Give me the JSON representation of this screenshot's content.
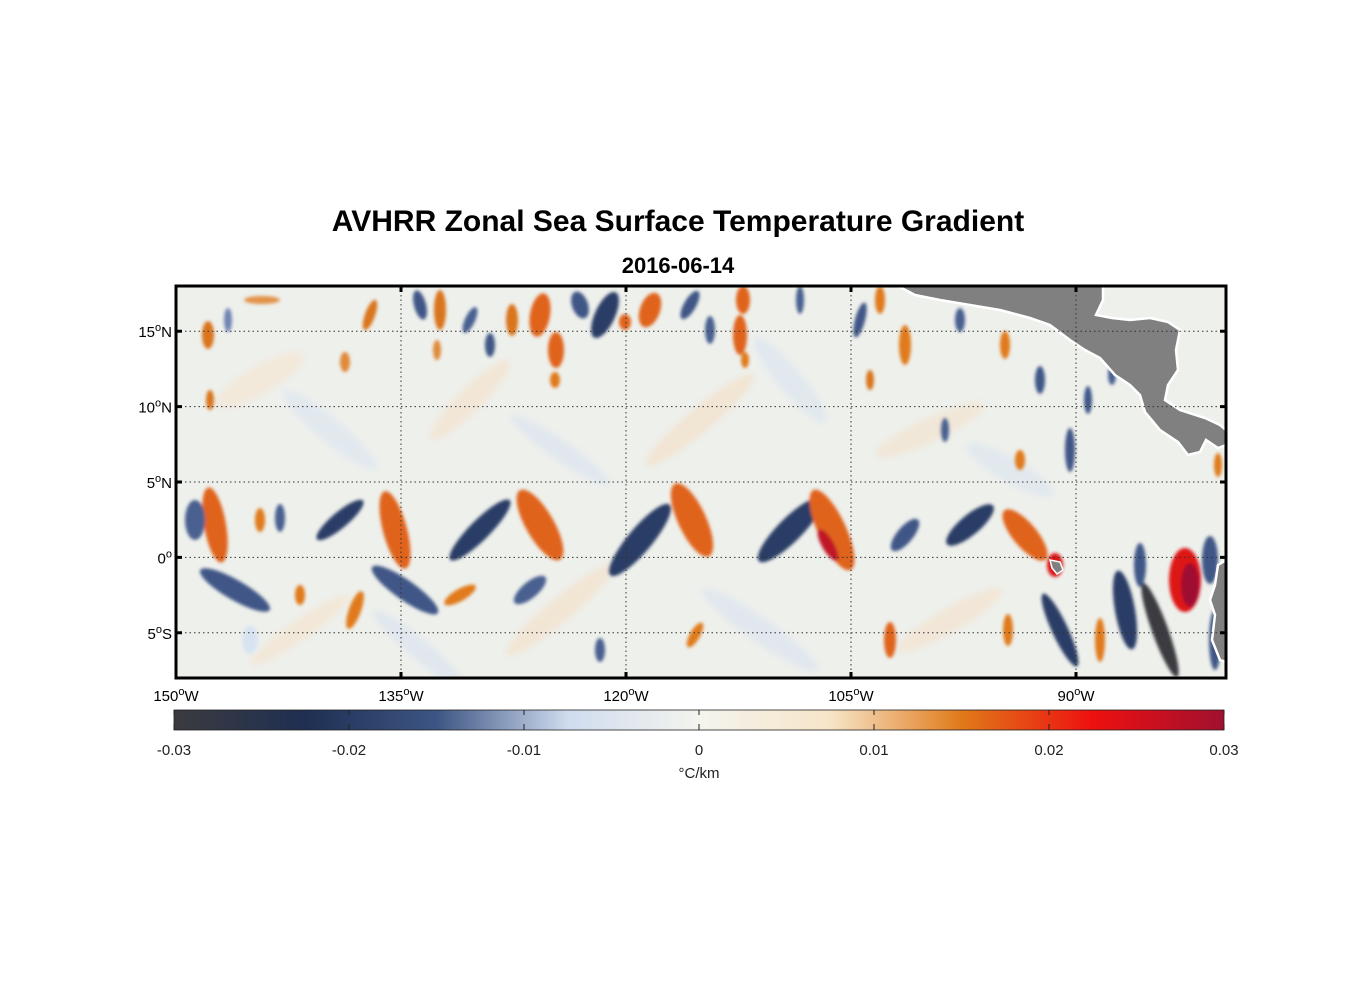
{
  "title": "AVHRR Zonal Sea Surface Temperature Gradient",
  "subtitle": "2016-06-14",
  "map": {
    "lon_range": [
      -150,
      -80
    ],
    "lat_range": [
      -8,
      18
    ],
    "lat_ticks": [
      {
        "value": 15,
        "deg": "15",
        "hem": "N"
      },
      {
        "value": 10,
        "deg": "10",
        "hem": "N"
      },
      {
        "value": 5,
        "deg": "5",
        "hem": "N"
      },
      {
        "value": 0,
        "deg": "0",
        "hem": ""
      },
      {
        "value": -5,
        "deg": "5",
        "hem": "S"
      }
    ],
    "lon_ticks": [
      {
        "value": -150,
        "deg": "150",
        "hem": "W"
      },
      {
        "value": -135,
        "deg": "135",
        "hem": "W"
      },
      {
        "value": -120,
        "deg": "120",
        "hem": "W"
      },
      {
        "value": -105,
        "deg": "105",
        "hem": "W"
      },
      {
        "value": -90,
        "deg": "90",
        "hem": "W"
      }
    ],
    "land_color": "#808080",
    "grid": "dotted"
  },
  "colorbar": {
    "min": -0.03,
    "max": 0.03,
    "ticks": [
      "-0.03",
      "-0.02",
      "-0.01",
      "0",
      "0.01",
      "0.02",
      "0.03"
    ],
    "unit": "°C/km",
    "colors": [
      "#3b3b3f",
      "#1f2f52",
      "#3d5584",
      "#cfdcef",
      "#f4f4ee",
      "#f7e5c8",
      "#e07a1a",
      "#ee1010",
      "#a01030"
    ]
  }
}
